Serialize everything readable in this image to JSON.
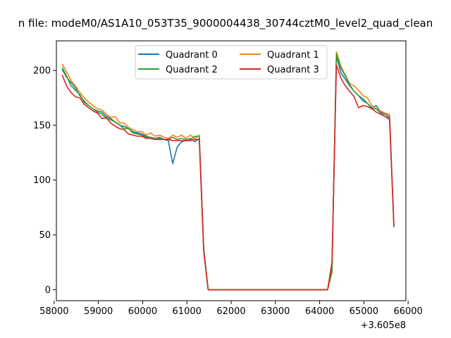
{
  "chart_data": {
    "type": "line",
    "title": "n file: modeM0/AS1A10_053T35_9000004438_30744cztM0_level2_quad_clean",
    "xlabel": "",
    "ylabel": "",
    "offset_label": "+3.605e8",
    "xlim": [
      58050,
      65950
    ],
    "ylim": [
      -10,
      227
    ],
    "xticks": [
      58000,
      59000,
      60000,
      61000,
      62000,
      63000,
      64000,
      65000,
      66000
    ],
    "yticks": [
      0,
      50,
      100,
      150,
      200
    ],
    "grid": false,
    "legend": {
      "placement": "top-center",
      "columns": 2
    },
    "series": [
      {
        "name": "Quadrant 0",
        "color": "#1f77b4",
        "points": [
          [
            58180,
            201
          ],
          [
            58280,
            194
          ],
          [
            58380,
            189
          ],
          [
            58480,
            184
          ],
          [
            58580,
            177
          ],
          [
            58680,
            172
          ],
          [
            58780,
            168
          ],
          [
            58880,
            165
          ],
          [
            58980,
            163
          ],
          [
            59080,
            162
          ],
          [
            59180,
            158
          ],
          [
            59280,
            156
          ],
          [
            59380,
            153
          ],
          [
            59480,
            150
          ],
          [
            59580,
            149
          ],
          [
            59680,
            147
          ],
          [
            59780,
            144
          ],
          [
            59880,
            143
          ],
          [
            59980,
            142
          ],
          [
            60080,
            140
          ],
          [
            60180,
            139
          ],
          [
            60280,
            138
          ],
          [
            60380,
            139
          ],
          [
            60480,
            137
          ],
          [
            60580,
            136
          ],
          [
            60680,
            115
          ],
          [
            60780,
            130
          ],
          [
            60880,
            135
          ],
          [
            60980,
            136
          ],
          [
            61080,
            138
          ],
          [
            61180,
            135
          ],
          [
            61280,
            138
          ],
          [
            61380,
            35
          ],
          [
            61480,
            0
          ],
          [
            61580,
            0
          ],
          [
            62000,
            0
          ],
          [
            63000,
            0
          ],
          [
            64000,
            0
          ],
          [
            64180,
            0
          ],
          [
            64280,
            20
          ],
          [
            64380,
            213
          ],
          [
            64480,
            198
          ],
          [
            64580,
            192
          ],
          [
            64680,
            186
          ],
          [
            64780,
            181
          ],
          [
            64880,
            177
          ],
          [
            64980,
            174
          ],
          [
            65080,
            170
          ],
          [
            65180,
            166
          ],
          [
            65280,
            168
          ],
          [
            65380,
            162
          ],
          [
            65480,
            160
          ],
          [
            65580,
            158
          ],
          [
            65680,
            58
          ]
        ]
      },
      {
        "name": "Quadrant 1",
        "color": "#ff7f0e",
        "points": [
          [
            58180,
            206
          ],
          [
            58280,
            199
          ],
          [
            58380,
            191
          ],
          [
            58480,
            186
          ],
          [
            58580,
            180
          ],
          [
            58680,
            175
          ],
          [
            58780,
            171
          ],
          [
            58880,
            168
          ],
          [
            58980,
            165
          ],
          [
            59080,
            164
          ],
          [
            59180,
            160
          ],
          [
            59280,
            157
          ],
          [
            59380,
            158
          ],
          [
            59480,
            152
          ],
          [
            59580,
            152
          ],
          [
            59680,
            148
          ],
          [
            59780,
            146
          ],
          [
            59880,
            144
          ],
          [
            59980,
            144
          ],
          [
            60080,
            141
          ],
          [
            60180,
            143
          ],
          [
            60280,
            140
          ],
          [
            60380,
            141
          ],
          [
            60480,
            139
          ],
          [
            60580,
            138
          ],
          [
            60680,
            141
          ],
          [
            60780,
            139
          ],
          [
            60880,
            141
          ],
          [
            60980,
            138
          ],
          [
            61080,
            141
          ],
          [
            61180,
            138
          ],
          [
            61280,
            141
          ],
          [
            61380,
            36
          ],
          [
            61480,
            0
          ],
          [
            61580,
            0
          ],
          [
            62000,
            0
          ],
          [
            63000,
            0
          ],
          [
            64000,
            0
          ],
          [
            64180,
            0
          ],
          [
            64280,
            15
          ],
          [
            64380,
            217
          ],
          [
            64480,
            204
          ],
          [
            64580,
            196
          ],
          [
            64680,
            188
          ],
          [
            64780,
            186
          ],
          [
            64880,
            182
          ],
          [
            64980,
            177
          ],
          [
            65080,
            175
          ],
          [
            65180,
            168
          ],
          [
            65280,
            165
          ],
          [
            65380,
            163
          ],
          [
            65480,
            161
          ],
          [
            65580,
            160
          ],
          [
            65680,
            58
          ]
        ]
      },
      {
        "name": "Quadrant 2",
        "color": "#2ca02c",
        "points": [
          [
            58180,
            203
          ],
          [
            58280,
            195
          ],
          [
            58380,
            186
          ],
          [
            58480,
            182
          ],
          [
            58580,
            178
          ],
          [
            58680,
            171
          ],
          [
            58780,
            168
          ],
          [
            58880,
            165
          ],
          [
            58980,
            162
          ],
          [
            59080,
            160
          ],
          [
            59180,
            156
          ],
          [
            59280,
            155
          ],
          [
            59380,
            153
          ],
          [
            59480,
            150
          ],
          [
            59580,
            147
          ],
          [
            59680,
            147
          ],
          [
            59780,
            143
          ],
          [
            59880,
            142
          ],
          [
            59980,
            141
          ],
          [
            60080,
            139
          ],
          [
            60180,
            139
          ],
          [
            60280,
            138
          ],
          [
            60380,
            138
          ],
          [
            60480,
            137
          ],
          [
            60580,
            137
          ],
          [
            60680,
            139
          ],
          [
            60780,
            137
          ],
          [
            60880,
            138
          ],
          [
            60980,
            137
          ],
          [
            61080,
            137
          ],
          [
            61180,
            140
          ],
          [
            61280,
            140
          ],
          [
            61380,
            38
          ],
          [
            61480,
            0
          ],
          [
            61580,
            0
          ],
          [
            62000,
            0
          ],
          [
            63000,
            0
          ],
          [
            64000,
            0
          ],
          [
            64180,
            0
          ],
          [
            64280,
            18
          ],
          [
            64380,
            215
          ],
          [
            64480,
            202
          ],
          [
            64580,
            195
          ],
          [
            64680,
            187
          ],
          [
            64780,
            181
          ],
          [
            64880,
            177
          ],
          [
            64980,
            172
          ],
          [
            65080,
            170
          ],
          [
            65180,
            165
          ],
          [
            65280,
            165
          ],
          [
            65380,
            161
          ],
          [
            65480,
            158
          ],
          [
            65580,
            155
          ],
          [
            65680,
            57
          ]
        ]
      },
      {
        "name": "Quadrant 3",
        "color": "#d62728",
        "points": [
          [
            58180,
            196
          ],
          [
            58280,
            186
          ],
          [
            58380,
            180
          ],
          [
            58480,
            176
          ],
          [
            58580,
            175
          ],
          [
            58680,
            169
          ],
          [
            58780,
            166
          ],
          [
            58880,
            163
          ],
          [
            58980,
            161
          ],
          [
            59080,
            156
          ],
          [
            59180,
            157
          ],
          [
            59280,
            152
          ],
          [
            59380,
            149
          ],
          [
            59480,
            147
          ],
          [
            59580,
            146
          ],
          [
            59680,
            142
          ],
          [
            59780,
            141
          ],
          [
            59880,
            140
          ],
          [
            59980,
            140
          ],
          [
            60080,
            138
          ],
          [
            60180,
            138
          ],
          [
            60280,
            137
          ],
          [
            60380,
            137
          ],
          [
            60480,
            137
          ],
          [
            60580,
            137
          ],
          [
            60680,
            136
          ],
          [
            60780,
            136
          ],
          [
            60880,
            136
          ],
          [
            60980,
            136
          ],
          [
            61080,
            136
          ],
          [
            61180,
            137
          ],
          [
            61280,
            137
          ],
          [
            61380,
            35
          ],
          [
            61480,
            0
          ],
          [
            61580,
            0
          ],
          [
            62000,
            0
          ],
          [
            63000,
            0
          ],
          [
            64000,
            0
          ],
          [
            64180,
            0
          ],
          [
            64280,
            25
          ],
          [
            64380,
            205
          ],
          [
            64480,
            193
          ],
          [
            64580,
            186
          ],
          [
            64680,
            181
          ],
          [
            64780,
            176
          ],
          [
            64880,
            166
          ],
          [
            64980,
            168
          ],
          [
            65080,
            167
          ],
          [
            65180,
            165
          ],
          [
            65280,
            162
          ],
          [
            65380,
            160
          ],
          [
            65480,
            158
          ],
          [
            65580,
            157
          ],
          [
            65680,
            58
          ]
        ]
      }
    ]
  }
}
